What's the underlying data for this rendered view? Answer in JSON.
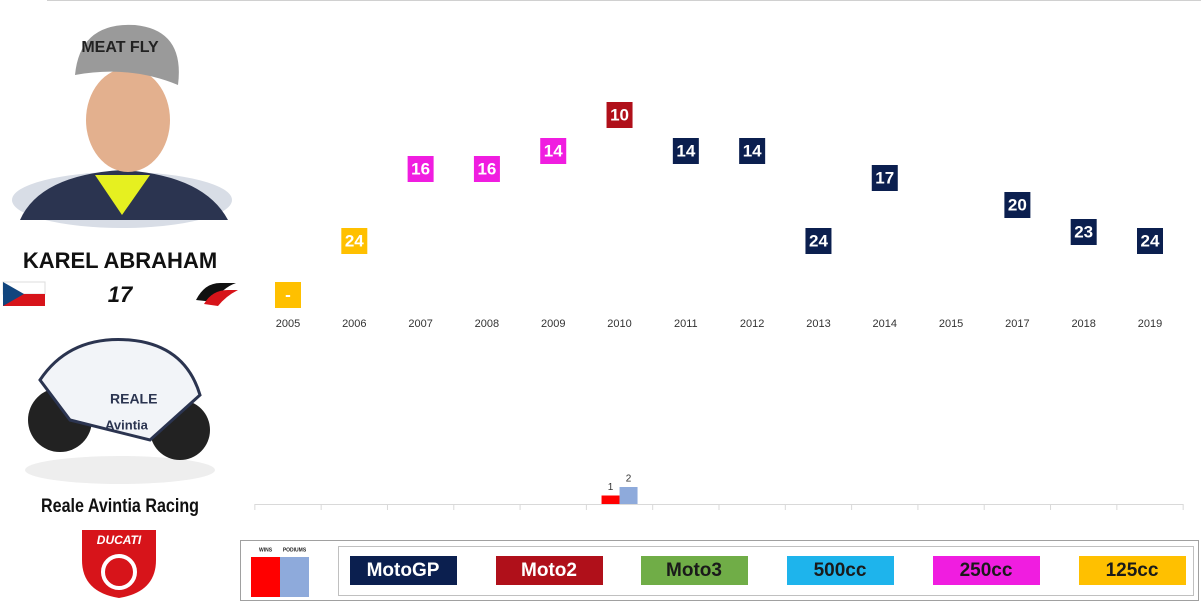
{
  "rider": {
    "name": "KAREL ABRAHAM",
    "number": "17",
    "team": "Reale Avintia Racing",
    "manufacturer": "DUCATI"
  },
  "chart_data": [
    {
      "type": "scatter",
      "categories": [
        "2005",
        "2006",
        "2007",
        "2008",
        "2009",
        "2010",
        "2011",
        "2012",
        "2013",
        "2014",
        "2015",
        "2017",
        "2018",
        "2019"
      ],
      "values": [
        null,
        24,
        16,
        16,
        14,
        10,
        14,
        14,
        24,
        17,
        null,
        20,
        23,
        24
      ],
      "value_labels": [
        "-",
        null,
        null,
        null,
        null,
        null,
        null,
        null,
        null,
        null,
        null,
        null,
        null,
        null
      ],
      "colors": [
        "#ffc000",
        "#ffc000",
        "#f01de0",
        "#f01de0",
        "#f01de0",
        "#b0101a",
        "#0b1f4f",
        "#0b1f4f",
        "#0b1f4f",
        "#0b1f4f",
        null,
        "#0b1f4f",
        "#0b1f4f",
        "#0b1f4f"
      ],
      "ylim": [
        30,
        5
      ],
      "legend": [
        {
          "name": "MotoGP",
          "color": "#0b1f4f",
          "text_color": "#ffffff"
        },
        {
          "name": "Moto2",
          "color": "#b0101a",
          "text_color": "#ffffff"
        },
        {
          "name": "Moto3",
          "color": "#70ad47",
          "text_color": "#1a1a1a"
        },
        {
          "name": "500cc",
          "color": "#1eb4ec",
          "text_color": "#1a1a1a"
        },
        {
          "name": "250cc",
          "color": "#f01de0",
          "text_color": "#1a1a1a"
        },
        {
          "name": "125cc",
          "color": "#ffc000",
          "text_color": "#1a1a1a"
        }
      ]
    },
    {
      "type": "bar",
      "series": [
        {
          "name": "WINS",
          "color": "#ff0000",
          "values": [
            0,
            0,
            0,
            0,
            0,
            1,
            0,
            0,
            0,
            0,
            0,
            0,
            0,
            0
          ]
        },
        {
          "name": "PODIUMS",
          "color": "#8eaadb",
          "values": [
            0,
            0,
            0,
            0,
            0,
            2,
            0,
            0,
            0,
            0,
            0,
            0,
            0,
            0
          ]
        }
      ],
      "ylim": [
        0,
        10
      ]
    }
  ]
}
